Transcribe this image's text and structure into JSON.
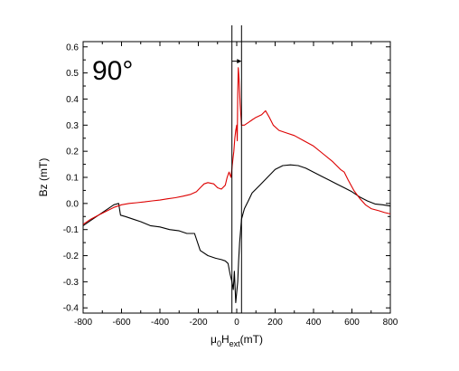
{
  "chart_data": {
    "type": "line",
    "annotation": "90°",
    "ylabel": "Bz (mT)",
    "xlabel": {
      "base": "μ",
      "sub1": "0",
      "mid": "H",
      "sub2": "ext",
      "unit": "(mT)"
    },
    "xlim": [
      -800,
      800
    ],
    "ylim": [
      -0.42,
      0.62
    ],
    "xticks": [
      -800,
      -600,
      -400,
      -200,
      0,
      200,
      400,
      600,
      800
    ],
    "xtick_labels": [
      "-800",
      "-600",
      "-400",
      "-200",
      "0",
      "200",
      "400",
      "600",
      "800"
    ],
    "yticks": [
      -0.4,
      -0.3,
      -0.2,
      -0.1,
      0.0,
      0.1,
      0.2,
      0.3,
      0.4,
      0.5,
      0.6
    ],
    "ytick_labels": [
      "-0.4",
      "-0.3",
      "-0.2",
      "-0.1",
      "0.0",
      "0.1",
      "0.2",
      "0.3",
      "0.4",
      "0.5",
      "0.6"
    ],
    "grid": false,
    "vertical_markers": [
      -25,
      25
    ],
    "arrow": {
      "from": [
        -25,
        0.545
      ],
      "to": [
        25,
        0.545
      ]
    },
    "series": [
      {
        "color": "#000000",
        "points": [
          [
            -800,
            -0.085
          ],
          [
            -760,
            -0.065
          ],
          [
            -720,
            -0.045
          ],
          [
            -680,
            -0.025
          ],
          [
            -640,
            -0.005
          ],
          [
            -615,
            0.0
          ],
          [
            -605,
            -0.045
          ],
          [
            -580,
            -0.05
          ],
          [
            -540,
            -0.06
          ],
          [
            -500,
            -0.07
          ],
          [
            -450,
            -0.085
          ],
          [
            -400,
            -0.09
          ],
          [
            -350,
            -0.1
          ],
          [
            -300,
            -0.105
          ],
          [
            -260,
            -0.115
          ],
          [
            -220,
            -0.115
          ],
          [
            -190,
            -0.18
          ],
          [
            -150,
            -0.2
          ],
          [
            -110,
            -0.21
          ],
          [
            -80,
            -0.215
          ],
          [
            -60,
            -0.22
          ],
          [
            -45,
            -0.23
          ],
          [
            -35,
            -0.27
          ],
          [
            -25,
            -0.3
          ],
          [
            -18,
            -0.33
          ],
          [
            -12,
            -0.26
          ],
          [
            -5,
            -0.38
          ],
          [
            0,
            -0.34
          ],
          [
            5,
            -0.3
          ],
          [
            10,
            -0.22
          ],
          [
            15,
            -0.15
          ],
          [
            25,
            -0.06
          ],
          [
            40,
            -0.02
          ],
          [
            60,
            0.01
          ],
          [
            80,
            0.04
          ],
          [
            120,
            0.07
          ],
          [
            160,
            0.1
          ],
          [
            200,
            0.13
          ],
          [
            240,
            0.145
          ],
          [
            280,
            0.148
          ],
          [
            320,
            0.145
          ],
          [
            360,
            0.135
          ],
          [
            400,
            0.12
          ],
          [
            440,
            0.105
          ],
          [
            480,
            0.09
          ],
          [
            520,
            0.075
          ],
          [
            560,
            0.06
          ],
          [
            600,
            0.045
          ],
          [
            640,
            0.025
          ],
          [
            680,
            0.01
          ],
          [
            720,
            -0.002
          ],
          [
            760,
            -0.005
          ],
          [
            800,
            -0.01
          ]
        ]
      },
      {
        "color": "#dd0000",
        "points": [
          [
            -800,
            -0.08
          ],
          [
            -760,
            -0.06
          ],
          [
            -720,
            -0.045
          ],
          [
            -680,
            -0.03
          ],
          [
            -640,
            -0.015
          ],
          [
            -600,
            -0.005
          ],
          [
            -560,
            0.0
          ],
          [
            -520,
            0.003
          ],
          [
            -480,
            0.006
          ],
          [
            -440,
            0.01
          ],
          [
            -400,
            0.013
          ],
          [
            -360,
            0.018
          ],
          [
            -320,
            0.022
          ],
          [
            -280,
            0.028
          ],
          [
            -240,
            0.035
          ],
          [
            -210,
            0.045
          ],
          [
            -190,
            0.06
          ],
          [
            -170,
            0.075
          ],
          [
            -150,
            0.08
          ],
          [
            -120,
            0.075
          ],
          [
            -100,
            0.06
          ],
          [
            -80,
            0.055
          ],
          [
            -60,
            0.07
          ],
          [
            -50,
            0.1
          ],
          [
            -40,
            0.12
          ],
          [
            -30,
            0.1
          ],
          [
            -20,
            0.17
          ],
          [
            -15,
            0.2
          ],
          [
            -10,
            0.25
          ],
          [
            -5,
            0.28
          ],
          [
            0,
            0.3
          ],
          [
            3,
            0.24
          ],
          [
            5,
            0.42
          ],
          [
            8,
            0.52
          ],
          [
            12,
            0.48
          ],
          [
            18,
            0.38
          ],
          [
            25,
            0.3
          ],
          [
            40,
            0.3
          ],
          [
            60,
            0.31
          ],
          [
            80,
            0.32
          ],
          [
            100,
            0.33
          ],
          [
            130,
            0.34
          ],
          [
            150,
            0.355
          ],
          [
            170,
            0.33
          ],
          [
            190,
            0.3
          ],
          [
            220,
            0.28
          ],
          [
            260,
            0.27
          ],
          [
            300,
            0.26
          ],
          [
            350,
            0.24
          ],
          [
            400,
            0.22
          ],
          [
            450,
            0.19
          ],
          [
            500,
            0.16
          ],
          [
            540,
            0.13
          ],
          [
            560,
            0.12
          ],
          [
            580,
            0.09
          ],
          [
            610,
            0.05
          ],
          [
            640,
            0.02
          ],
          [
            670,
            -0.005
          ],
          [
            700,
            -0.02
          ],
          [
            740,
            -0.028
          ],
          [
            770,
            -0.035
          ],
          [
            800,
            -0.04
          ]
        ]
      }
    ]
  }
}
